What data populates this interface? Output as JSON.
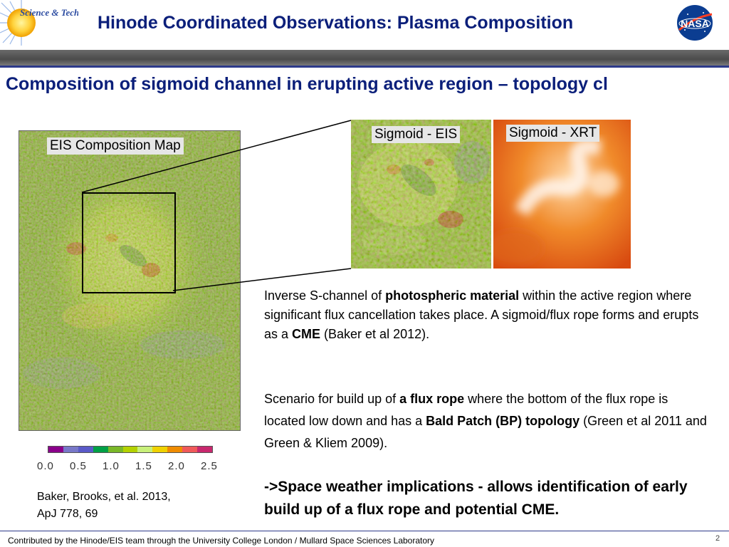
{
  "header": {
    "title": "Hinode Coordinated Observations:  Plasma Composition",
    "logo_text": "Science & Technology Office",
    "nasa_text": "NASA"
  },
  "slide": {
    "subtitle": "Composition of sigmoid channel in erupting active region – topology cl"
  },
  "images": {
    "eis_map_label": "EIS Composition Map",
    "sigmoid_eis_label": "Sigmoid - EIS",
    "sigmoid_xrt_label": "Sigmoid - XRT"
  },
  "colorbar": {
    "colors": [
      "#8a008a",
      "#7878c8",
      "#5a5ac8",
      "#00a046",
      "#7ab828",
      "#b4d200",
      "#c8f07a",
      "#f0d200",
      "#f08c00",
      "#f05a5a",
      "#c8286e"
    ],
    "ticks": [
      "0.0",
      "0.5",
      "1.0",
      "1.5",
      "2.0",
      "2.5"
    ]
  },
  "reference": {
    "line1": "Baker, Brooks, et al. 2013,",
    "line2": "ApJ 778, 69"
  },
  "text": {
    "p1_a": "Inverse S-channel of ",
    "p1_b": "photospheric material",
    "p1_c": " within the active region where significant flux cancellation takes place.  A sigmoid/flux rope forms and erupts as a ",
    "p1_d": "CME",
    "p1_e": " (Baker et al 2012).",
    "p2_a": "Scenario for build up of ",
    "p2_b": "a flux rope",
    "p2_c": " where the bottom of the flux rope is located low down and has a ",
    "p2_d": "Bald Patch (BP) topology",
    "p2_e": " (Green et al 2011 and Green & Kliem 2009).",
    "p3": "->Space weather implications - allows identification of early build up of a flux rope and potential CME."
  },
  "footer": {
    "text": "Contributed by the Hinode/EIS team through the University College London / Mullard Space Sciences Laboratory",
    "page": "2"
  }
}
